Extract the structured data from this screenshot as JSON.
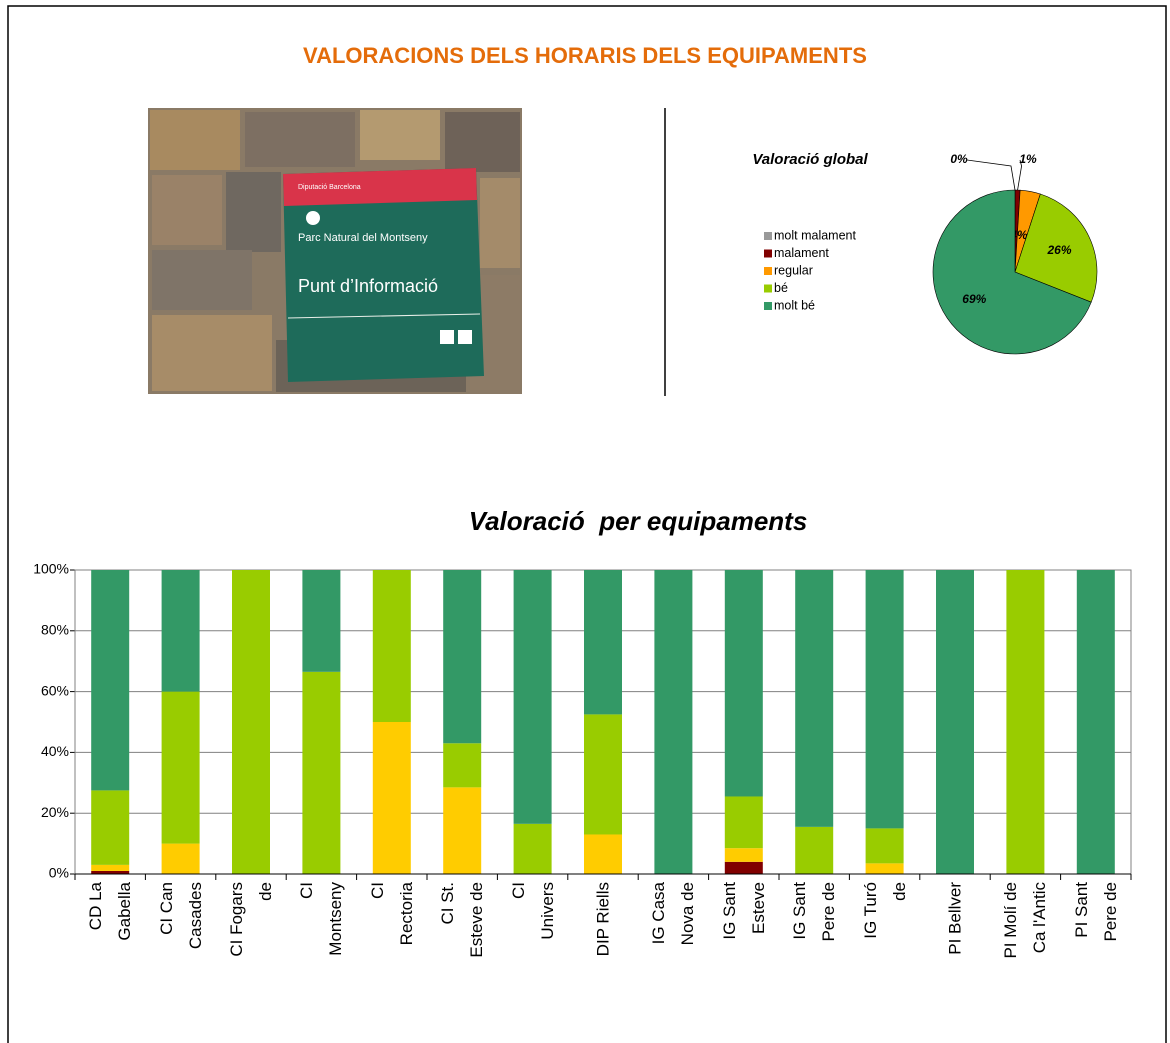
{
  "title": "VALORACIONS DELS HORARIS DELS EQUIPAMENTS",
  "photo": {
    "brand": "Diputació Barcelona",
    "park": "Parc Natural del Montseny",
    "sign": "Punt d’Informació"
  },
  "chart_data": [
    {
      "type": "pie",
      "title": "Valoració global",
      "categories": [
        "molt malament",
        "malament",
        "regular",
        "bé",
        "molt bé"
      ],
      "values": [
        0,
        1,
        4,
        26,
        69
      ],
      "value_labels": [
        "0%",
        "1%",
        "4%",
        "26%",
        "69%"
      ],
      "colors": [
        "#999999",
        "#800000",
        "#ff9900",
        "#99cc00",
        "#339966"
      ],
      "legend": "left"
    },
    {
      "type": "stacked_bar",
      "title": "Valoració  per equipaments",
      "categories": [
        "CD La\nGabella",
        "CI Can\nCasades",
        "CI Fogars\nde",
        "CI\nMontseny",
        "CI\nRectoria",
        "CI St.\nEsteve de",
        "CI\nUnivers",
        "DIP Riells",
        "IG Casa\nNova de",
        "IG Sant\nEsteve",
        "IG Sant\nPere de",
        "IG Turó\nde",
        "PI Bellver",
        "PI Molí de\nCa l'Antic",
        "PI Sant\nPere de"
      ],
      "series": [
        {
          "color": "#800000",
          "values": [
            1,
            0,
            0,
            0,
            0,
            0,
            0,
            0,
            0,
            4,
            0,
            0,
            0,
            0,
            0
          ]
        },
        {
          "color": "#ffcc00",
          "values": [
            2,
            10,
            0,
            0,
            50,
            28.5,
            0,
            13,
            0,
            4.5,
            0,
            3.5,
            0,
            0,
            0
          ]
        },
        {
          "color": "#99cc00",
          "values": [
            24.5,
            50,
            100,
            66.5,
            50,
            14.5,
            16.5,
            39.5,
            0,
            17,
            15.5,
            11.5,
            0,
            100,
            0
          ]
        },
        {
          "color": "#339966",
          "values": [
            72.5,
            40,
            0,
            33.5,
            0,
            57,
            83.5,
            47.5,
            100,
            74.5,
            84.5,
            85,
            100,
            0,
            100
          ]
        }
      ],
      "ylim": [
        0,
        100
      ],
      "yticks": [
        {
          "value": 0,
          "label": "0%"
        },
        {
          "value": 20,
          "label": "20%"
        },
        {
          "value": 40,
          "label": "40%"
        },
        {
          "value": 60,
          "label": "60%"
        },
        {
          "value": 80,
          "label": "80%"
        },
        {
          "value": 100,
          "label": "100%"
        }
      ],
      "grid": true
    }
  ]
}
